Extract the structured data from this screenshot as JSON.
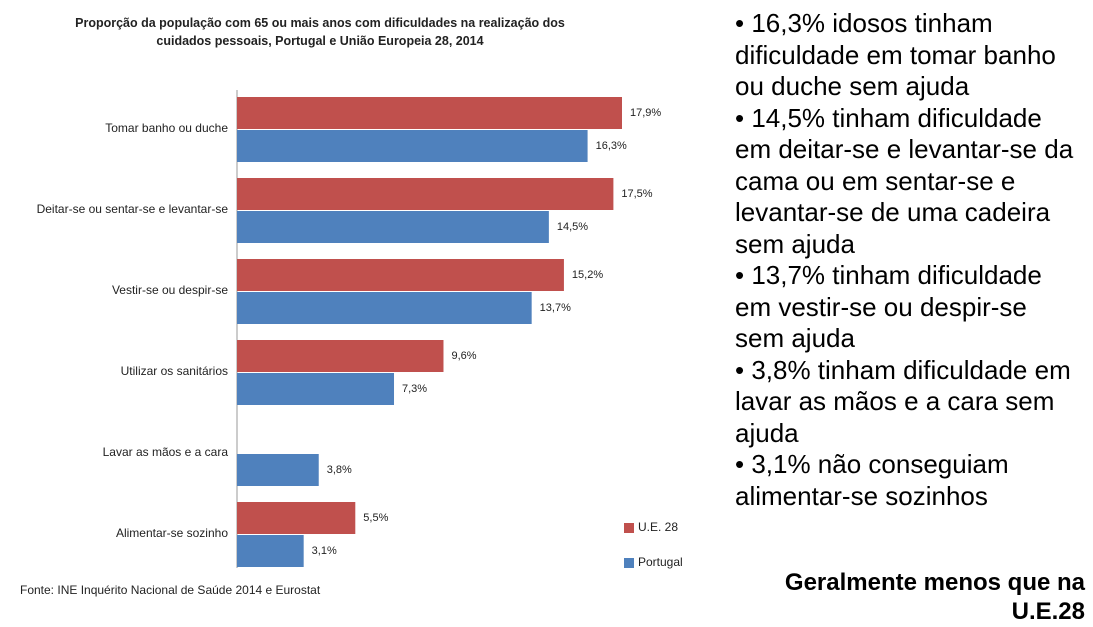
{
  "chart_data": {
    "type": "barh",
    "title": "Proporção da população com 65 ou mais anos com dificuldades na realização dos cuidados pessoais, Portugal e União Europeia 28, 2014",
    "categories": [
      "Tomar banho ou duche",
      "Deitar-se ou sentar-se e levantar-se",
      "Vestir-se ou despir-se",
      "Utilizar os sanitários",
      "Lavar as mãos e a cara",
      "Alimentar-se sozinho"
    ],
    "series": [
      {
        "name": "U.E. 28",
        "color": "#c0504d",
        "values": [
          17.9,
          17.5,
          15.2,
          9.6,
          null,
          5.5
        ],
        "value_labels": [
          "17,9%",
          "17,5%",
          "15,2%",
          "9,6%",
          null,
          "5,5%"
        ]
      },
      {
        "name": "Portugal",
        "color": "#4f81bd",
        "values": [
          16.3,
          14.5,
          13.7,
          7.3,
          3.8,
          3.1
        ],
        "value_labels": [
          "16,3%",
          "14,5%",
          "13,7%",
          "7,3%",
          "3,8%",
          "3,1%"
        ]
      }
    ],
    "source": "Fonte: INE Inquérito Nacional de Saúde 2014 e Eurostat"
  },
  "text_panel": {
    "bullets": [
      "• 16,3% idosos tinham dificuldade em tomar banho ou duche sem ajuda",
      "• 14,5% tinham dificuldade em deitar-se e levantar-se da cama ou em sentar-se e levantar-se de uma cadeira sem ajuda",
      "• 13,7% tinham dificuldade em vestir-se ou despir-se sem ajuda",
      "• 3,8% tinham dificuldade em lavar as mãos e a cara sem ajuda",
      "• 3,1% não conseguiam alimentar-se sozinhos"
    ],
    "conclusion": "Geralmente menos que na U.E.28"
  }
}
